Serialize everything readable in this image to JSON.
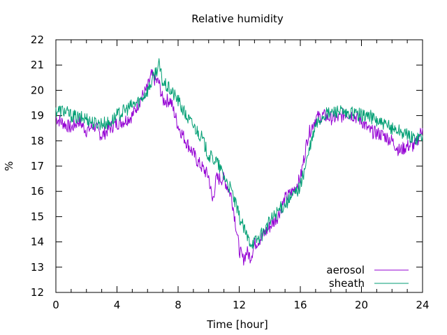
{
  "chart_data": {
    "type": "line",
    "title": "Relative humidity",
    "xlabel": "Time [hour]",
    "ylabel": "%",
    "xlim": [
      0,
      24
    ],
    "ylim": [
      12,
      22
    ],
    "xticks": [
      0,
      4,
      8,
      12,
      16,
      20,
      24
    ],
    "yticks": [
      12,
      13,
      14,
      15,
      16,
      17,
      18,
      19,
      20,
      21,
      22
    ],
    "grid": false,
    "legend_position": "bottom-right",
    "series": [
      {
        "name": "aerosol",
        "color": "#9400d3",
        "x": [
          0,
          0.5,
          1,
          1.5,
          2,
          2.5,
          3,
          3.5,
          4,
          4.5,
          5,
          5.5,
          6,
          6.25,
          6.5,
          6.75,
          7,
          7.5,
          8,
          8.5,
          9,
          9.25,
          9.5,
          10,
          10.25,
          10.5,
          11,
          11.5,
          11.75,
          12,
          12.25,
          12.5,
          12.75,
          13,
          13.5,
          14,
          14.5,
          15,
          15.5,
          16,
          16.5,
          17,
          17.5,
          18,
          18.5,
          19,
          19.5,
          20,
          20.5,
          21,
          21.5,
          22,
          22.5,
          23,
          23.5,
          24
        ],
        "y": [
          18.9,
          18.7,
          18.5,
          18.8,
          18.4,
          18.6,
          18.2,
          18.5,
          18.7,
          18.8,
          19.0,
          19.6,
          20.1,
          20.6,
          20.4,
          20.3,
          19.6,
          19.6,
          18.6,
          18.0,
          17.5,
          17.2,
          17.0,
          16.6,
          15.6,
          16.5,
          16.5,
          15.8,
          14.8,
          13.7,
          13.3,
          13.6,
          13.4,
          13.9,
          14.2,
          14.6,
          15.0,
          15.7,
          16.0,
          16.5,
          18.2,
          18.9,
          19.0,
          18.9,
          18.9,
          19.1,
          19.0,
          18.8,
          18.4,
          18.3,
          18.2,
          18.0,
          17.6,
          17.8,
          17.8,
          18.5
        ]
      },
      {
        "name": "sheath",
        "color": "#009e73",
        "x": [
          0,
          0.5,
          1,
          1.5,
          2,
          2.5,
          3,
          3.5,
          4,
          4.5,
          5,
          5.5,
          6,
          6.25,
          6.5,
          6.75,
          7,
          7.5,
          8,
          8.5,
          9,
          9.5,
          10,
          10.5,
          11,
          11.5,
          12,
          12.25,
          12.5,
          12.75,
          13,
          13.5,
          14,
          14.5,
          15,
          15.5,
          16,
          16.5,
          17,
          17.5,
          18,
          18.5,
          19,
          19.5,
          20,
          20.5,
          21,
          21.5,
          22,
          22.5,
          23,
          23.5,
          24
        ],
        "y": [
          19.2,
          19.2,
          19.0,
          18.9,
          18.9,
          18.7,
          18.7,
          18.7,
          19.0,
          19.2,
          19.4,
          19.6,
          20.0,
          20.3,
          20.7,
          21.0,
          20.3,
          20.0,
          19.6,
          19.0,
          18.6,
          18.2,
          17.4,
          17.2,
          16.6,
          16.0,
          15.0,
          14.6,
          14.2,
          14.0,
          14.0,
          14.3,
          14.8,
          15.2,
          15.5,
          15.8,
          16.2,
          17.4,
          18.6,
          19.0,
          19.1,
          19.2,
          19.0,
          19.1,
          19.0,
          19.0,
          18.8,
          18.6,
          18.5,
          18.4,
          18.2,
          18.1,
          18.2
        ]
      }
    ]
  }
}
